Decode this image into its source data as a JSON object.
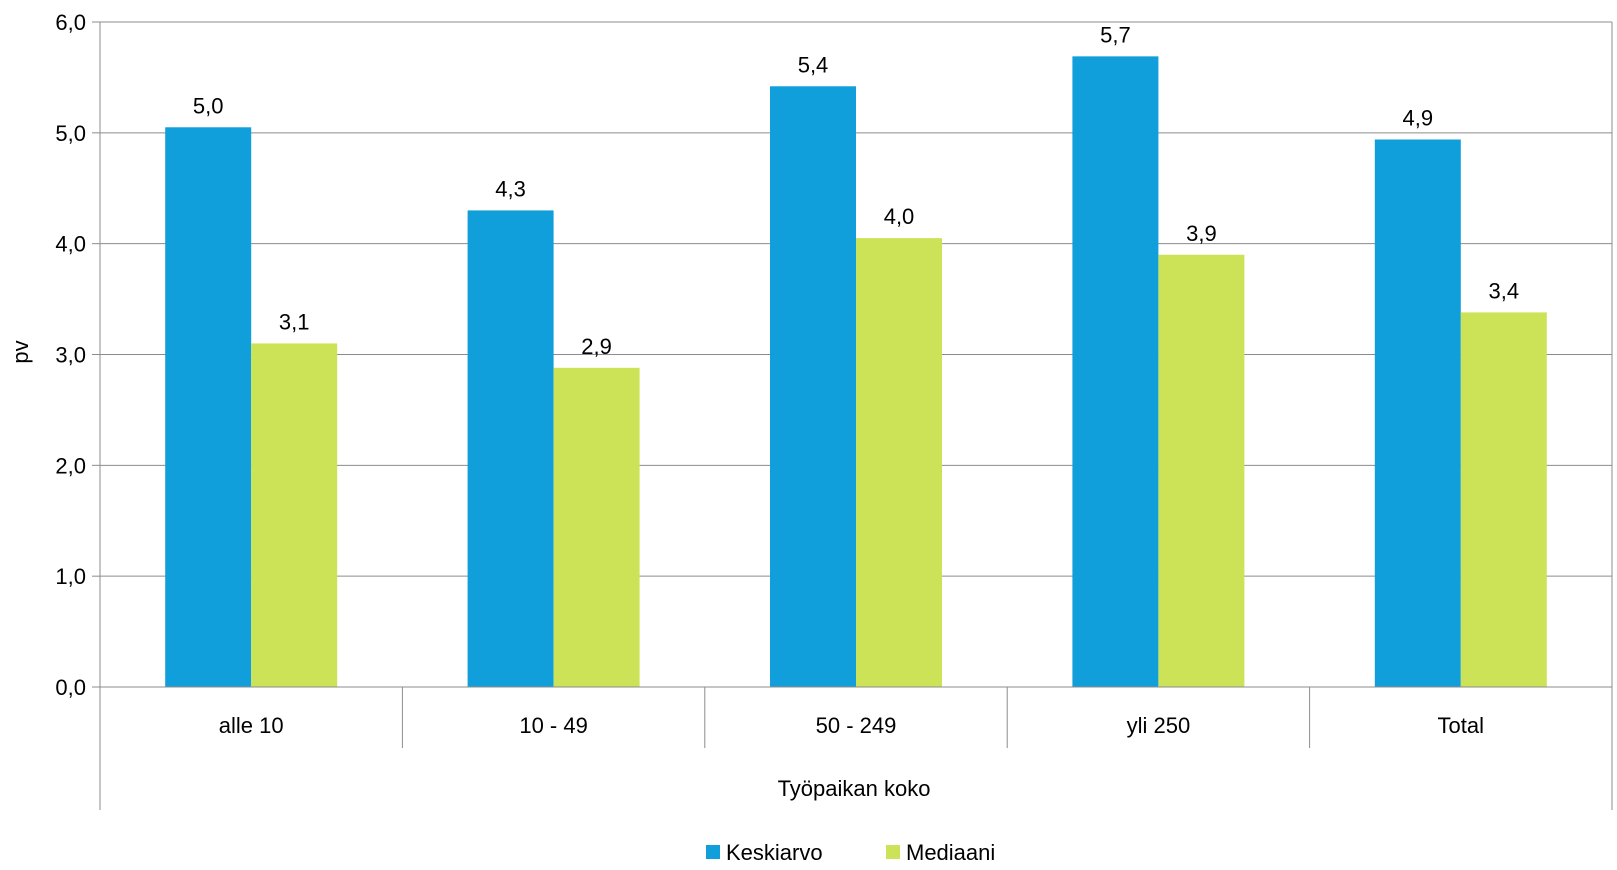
{
  "chart_data": {
    "type": "bar",
    "title": "",
    "xlabel": "Työpaikan koko",
    "ylabel": "pv",
    "ylim": [
      0,
      6
    ],
    "yticks": [
      "0,0",
      "1,0",
      "2,0",
      "3,0",
      "4,0",
      "5,0",
      "6,0"
    ],
    "grid": true,
    "legend_position": "bottom",
    "categories": [
      "alle 10",
      "10 - 49",
      "50 - 249",
      "yli 250",
      "Total"
    ],
    "series": [
      {
        "name": "Keskiarvo",
        "color": "#109fdb",
        "values": [
          5.05,
          4.3,
          5.42,
          5.69,
          4.94
        ],
        "labels": [
          "5,0",
          "4,3",
          "5,4",
          "5,7",
          "4,9"
        ]
      },
      {
        "name": "Mediaani",
        "color": "#cde357",
        "values": [
          3.1,
          2.88,
          4.05,
          3.9,
          3.38
        ],
        "labels": [
          "3,1",
          "2,9",
          "4,0",
          "3,9",
          "3,4"
        ]
      }
    ]
  }
}
